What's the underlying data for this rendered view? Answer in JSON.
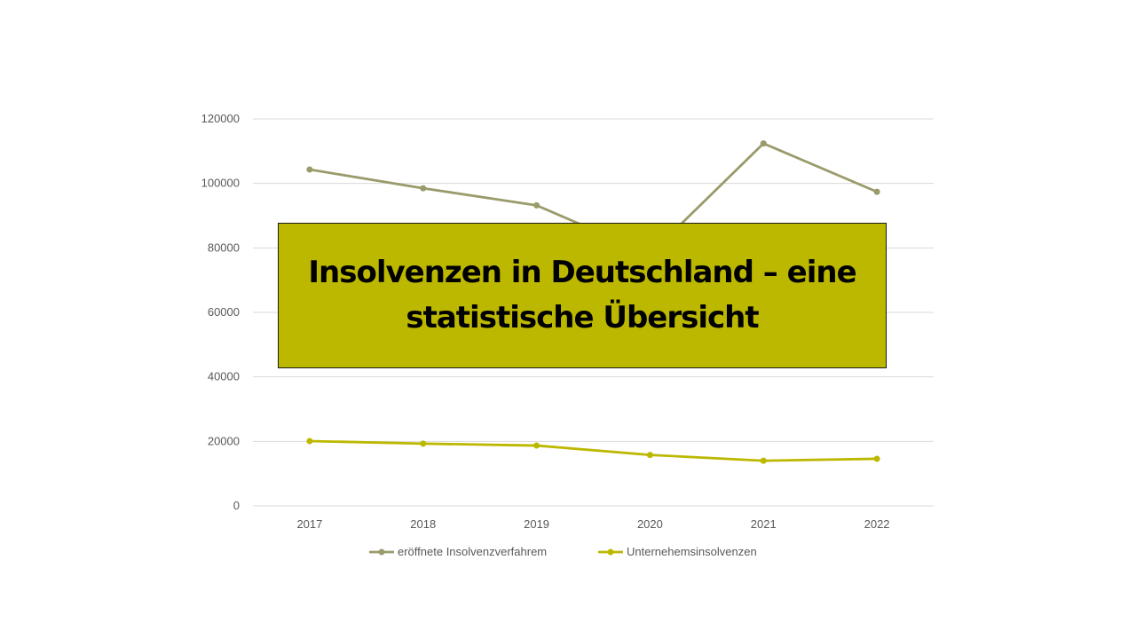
{
  "colors": {
    "series1": "#9a9a6b",
    "series2": "#bcb800",
    "overlay_bg": "#bcb800",
    "grid": "#d9d9d9",
    "tick_text": "#595959"
  },
  "overlay": {
    "title": "Insolvenzen in Deutschland – eine statistische Übersicht"
  },
  "chart_data": {
    "type": "line",
    "categories": [
      "2017",
      "2018",
      "2019",
      "2020",
      "2021",
      "2022"
    ],
    "ylim": [
      0,
      120000
    ],
    "yticks": [
      "0",
      "20000",
      "40000",
      "60000",
      "80000",
      "100000",
      "120000"
    ],
    "grid": true,
    "legend": "bottom",
    "series": [
      {
        "name": "eröffnete Insolvenzverfahrem",
        "values": [
          104300,
          98500,
          93200,
          78000,
          112400,
          97400
        ]
      },
      {
        "name": "Unternehemsinsolvenzen",
        "values": [
          20100,
          19300,
          18700,
          15800,
          14000,
          14600
        ]
      }
    ]
  }
}
